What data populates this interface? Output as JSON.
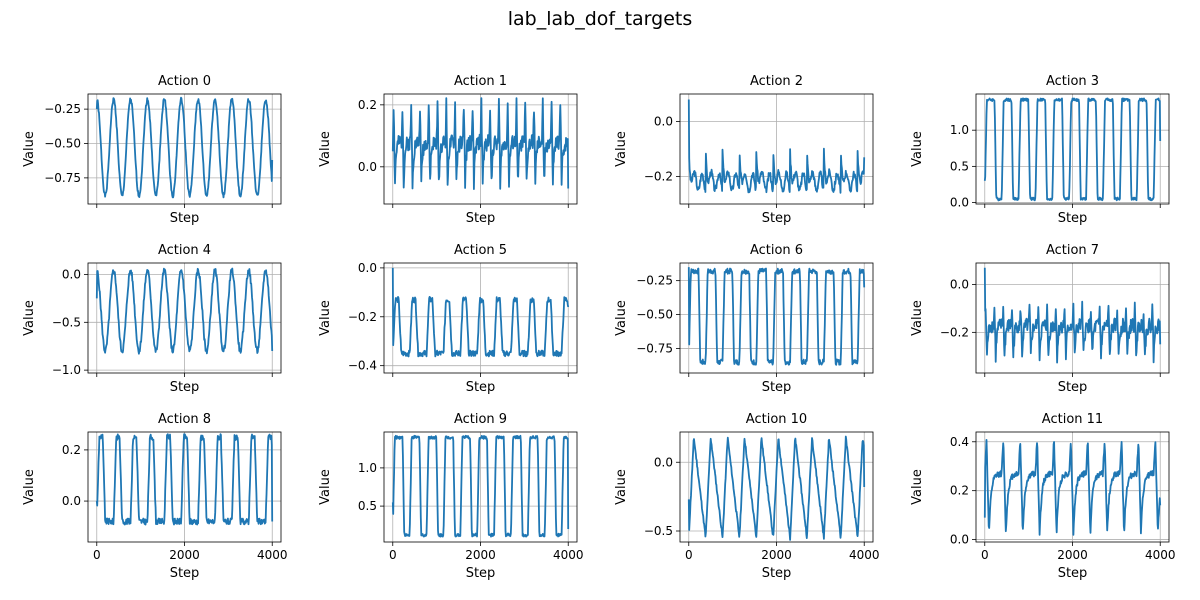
{
  "figure": {
    "title": "lab_lab_dof_targets"
  },
  "chart_data": [
    {
      "type": "line",
      "title": "Action 0",
      "xlabel": "Step",
      "ylabel": "Value",
      "xlim": [
        -200,
        4200
      ],
      "ylim": [
        -0.94,
        -0.14
      ],
      "xticks": [
        0,
        2000,
        4000
      ],
      "yticks": [
        -0.25,
        -0.5,
        -0.75
      ],
      "ytick_labels": [
        "−0.25",
        "−0.50",
        "−0.75"
      ],
      "show_xlabels": false,
      "grid": true,
      "wave": {
        "kind": "osc",
        "period": 385,
        "hi": -0.18,
        "lo": -0.88,
        "start": -0.25,
        "end": -0.62,
        "noise": 0.015,
        "seed": 1
      }
    },
    {
      "type": "line",
      "title": "Action 1",
      "xlabel": "Step",
      "ylabel": "Value",
      "xlim": [
        -200,
        4200
      ],
      "ylim": [
        -0.12,
        0.235
      ],
      "xticks": [
        0,
        2000,
        4000
      ],
      "yticks": [
        0.2,
        0.0
      ],
      "ytick_labels": [
        "0.2",
        "0.0"
      ],
      "show_xlabels": false,
      "grid": true,
      "wave": {
        "kind": "spiky",
        "period": 200,
        "hi": 0.2,
        "lo": -0.05,
        "base": 0.08,
        "start": 0.05,
        "end": -0.07,
        "noise": 0.025,
        "seed": 2
      }
    },
    {
      "type": "line",
      "title": "Action 2",
      "xlabel": "Step",
      "ylabel": "Value",
      "xlim": [
        -200,
        4200
      ],
      "ylim": [
        -0.3,
        0.1
      ],
      "xticks": [
        0,
        2000,
        4000
      ],
      "yticks": [
        0.0,
        -0.2
      ],
      "ytick_labels": [
        "0.0",
        "−0.2"
      ],
      "show_xlabels": false,
      "grid": true,
      "wave": {
        "kind": "decay",
        "period": 385,
        "hi": -0.11,
        "lo": -0.27,
        "base": -0.22,
        "start": 0.08,
        "end": -0.13,
        "noise": 0.012,
        "seed": 3
      }
    },
    {
      "type": "line",
      "title": "Action 3",
      "xlabel": "Step",
      "ylabel": "Value",
      "xlim": [
        -200,
        4200
      ],
      "ylim": [
        -0.02,
        1.5
      ],
      "xticks": [
        0,
        2000,
        4000
      ],
      "yticks": [
        1.0,
        0.5,
        0.0
      ],
      "ytick_labels": [
        "1.0",
        "0.5",
        "0.0"
      ],
      "show_xlabels": false,
      "grid": true,
      "wave": {
        "kind": "square",
        "period": 385,
        "hi": 1.42,
        "lo": 0.05,
        "start": 0.3,
        "end": 0.85,
        "noise": 0.02,
        "seed": 4
      }
    },
    {
      "type": "line",
      "title": "Action 4",
      "xlabel": "Step",
      "ylabel": "Value",
      "xlim": [
        -200,
        4200
      ],
      "ylim": [
        -1.03,
        0.12
      ],
      "xticks": [
        0,
        2000,
        4000
      ],
      "yticks": [
        0.0,
        -0.5,
        -1.0
      ],
      "ytick_labels": [
        "0.0",
        "−0.5",
        "−1.0"
      ],
      "show_xlabels": false,
      "grid": true,
      "wave": {
        "kind": "osc",
        "period": 385,
        "hi": 0.04,
        "lo": -0.8,
        "start": -0.25,
        "end": -0.8,
        "noise": 0.03,
        "seed": 5
      }
    },
    {
      "type": "line",
      "title": "Action 5",
      "xlabel": "Step",
      "ylabel": "Value",
      "xlim": [
        -200,
        4200
      ],
      "ylim": [
        -0.43,
        0.02
      ],
      "xticks": [
        0,
        2000,
        4000
      ],
      "yticks": [
        0.0,
        -0.2,
        -0.4
      ],
      "ytick_labels": [
        "0.0",
        "−0.2",
        "−0.4"
      ],
      "show_xlabels": false,
      "grid": true,
      "wave": {
        "kind": "lowflat",
        "period": 385,
        "hi": -0.13,
        "lo": -0.35,
        "start": 0.0,
        "end": -0.16,
        "noise": 0.012,
        "seed": 6
      }
    },
    {
      "type": "line",
      "title": "Action 6",
      "xlabel": "Step",
      "ylabel": "Value",
      "xlim": [
        -200,
        4200
      ],
      "ylim": [
        -0.93,
        -0.12
      ],
      "xticks": [
        0,
        2000,
        4000
      ],
      "yticks": [
        -0.25,
        -0.5,
        -0.75
      ],
      "ytick_labels": [
        "−0.25",
        "−0.50",
        "−0.75"
      ],
      "show_xlabels": false,
      "grid": true,
      "wave": {
        "kind": "square",
        "period": 385,
        "hi": -0.18,
        "lo": -0.85,
        "start": -0.15,
        "end": -0.3,
        "noise": 0.02,
        "seed": 7
      }
    },
    {
      "type": "line",
      "title": "Action 7",
      "xlabel": "Step",
      "ylabel": "Value",
      "xlim": [
        -200,
        4200
      ],
      "ylim": [
        -0.37,
        0.09
      ],
      "xticks": [
        0,
        2000,
        4000
      ],
      "yticks": [
        0.0,
        -0.2
      ],
      "ytick_labels": [
        "0.0",
        "−0.2"
      ],
      "show_xlabels": false,
      "grid": true,
      "wave": {
        "kind": "spiky",
        "period": 200,
        "hi": -0.1,
        "lo": -0.3,
        "base": -0.17,
        "start": 0.07,
        "end": -0.25,
        "noise": 0.03,
        "seed": 8
      }
    },
    {
      "type": "line",
      "title": "Action 8",
      "xlabel": "Step",
      "ylabel": "Value",
      "xlim": [
        -200,
        4200
      ],
      "ylim": [
        -0.16,
        0.27
      ],
      "xticks": [
        0,
        2000,
        4000
      ],
      "yticks": [
        0.2,
        0.0
      ],
      "ytick_labels": [
        "0.2",
        "0.0"
      ],
      "show_xlabels": true,
      "grid": true,
      "wave": {
        "kind": "lowflat",
        "period": 385,
        "hi": 0.25,
        "lo": -0.08,
        "start": 0.0,
        "end": -0.08,
        "noise": 0.012,
        "seed": 9
      }
    },
    {
      "type": "line",
      "title": "Action 9",
      "xlabel": "Step",
      "ylabel": "Value",
      "xlim": [
        -200,
        4200
      ],
      "ylim": [
        0.03,
        1.47
      ],
      "xticks": [
        0,
        2000,
        4000
      ],
      "yticks": [
        1.0,
        0.5
      ],
      "ytick_labels": [
        "1.0",
        "0.5"
      ],
      "show_xlabels": true,
      "grid": true,
      "wave": {
        "kind": "square",
        "period": 385,
        "hi": 1.4,
        "lo": 0.12,
        "start": 0.55,
        "end": 0.2,
        "noise": 0.02,
        "seed": 10
      }
    },
    {
      "type": "line",
      "title": "Action 10",
      "xlabel": "Step",
      "ylabel": "Value",
      "xlim": [
        -200,
        4200
      ],
      "ylim": [
        -0.58,
        0.22
      ],
      "xticks": [
        0,
        2000,
        4000
      ],
      "yticks": [
        0.0,
        -0.5
      ],
      "ytick_labels": [
        "0.0",
        "−0.5"
      ],
      "show_xlabels": true,
      "grid": true,
      "wave": {
        "kind": "saw",
        "period": 385,
        "hi": 0.18,
        "lo": -0.55,
        "start": -0.27,
        "end": -0.18,
        "noise": 0.015,
        "seed": 11
      }
    },
    {
      "type": "line",
      "title": "Action 11",
      "xlabel": "Step",
      "ylabel": "Value",
      "xlim": [
        -200,
        4200
      ],
      "ylim": [
        -0.01,
        0.44
      ],
      "xticks": [
        0,
        2000,
        4000
      ],
      "yticks": [
        0.4,
        0.2,
        0.0
      ],
      "ytick_labels": [
        "0.4",
        "0.2",
        "0.0"
      ],
      "show_xlabels": true,
      "grid": true,
      "wave": {
        "kind": "spiky",
        "period": 385,
        "hi": 0.41,
        "lo": 0.02,
        "base": 0.27,
        "start": 0.09,
        "end": 0.14,
        "noise": 0.012,
        "seed": 12
      }
    }
  ],
  "style": {
    "line_color": "#1f77b4",
    "grid_color": "#b0b0b0",
    "axes_color": "#000000"
  }
}
